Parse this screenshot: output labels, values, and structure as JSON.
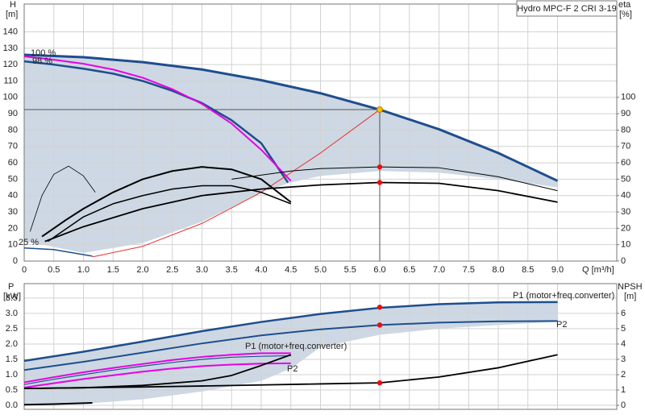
{
  "chart_data": [
    {
      "type": "line",
      "title": "Hydro MPC-F 2 CRI 3-19",
      "y_label": "H",
      "y_unit": "[m]",
      "y2_label": "eta",
      "y2_unit": "[%]",
      "x_label": "Q [m³/h]",
      "xlim": [
        0,
        10
      ],
      "xticks": [
        0,
        0.5,
        {
          "value": 1,
          "label": "1.0"
        },
        1.5,
        {
          "value": 2,
          "label": "2.0"
        },
        2.5,
        {
          "value": 3,
          "label": "3.0"
        },
        3.5,
        {
          "value": 4,
          "label": "4.0"
        },
        4.5,
        {
          "value": 5,
          "label": "5.0"
        },
        5.5,
        {
          "value": 6,
          "label": "6.0"
        },
        6.5,
        {
          "value": 7,
          "label": "7.0"
        },
        7.5,
        {
          "value": 8,
          "label": "8.0"
        },
        8.5,
        {
          "value": 9,
          "label": "9.0"
        }
      ],
      "xtick_labels": true,
      "ylim": [
        0,
        157
      ],
      "yticks": [
        0,
        10,
        20,
        30,
        40,
        50,
        60,
        70,
        80,
        90,
        100,
        110,
        120,
        130,
        140
      ],
      "y2lim": [
        0,
        157
      ],
      "y2ticks": [
        0,
        10,
        20,
        30,
        40,
        50,
        60,
        70,
        80,
        90,
        100
      ],
      "grid": true,
      "area": {
        "color": "#cdd8e4",
        "x": [
          0,
          0.3,
          1,
          2,
          3,
          4,
          4.5,
          5,
          6,
          7,
          8,
          9
        ],
        "upper": [
          126,
          126,
          124.5,
          121.5,
          117,
          110.5,
          107,
          102.5,
          92.5,
          80.5,
          66,
          49
        ],
        "lower": [
          12,
          10,
          5,
          11,
          24,
          42,
          48,
          52,
          55,
          54,
          50,
          45
        ]
      },
      "series": [
        {
          "color": "#1f4e8c",
          "width": 3,
          "x": [
            0,
            1,
            2,
            3,
            4,
            5,
            6,
            7,
            8,
            9
          ],
          "values": [
            126,
            124.5,
            121.5,
            117,
            110.5,
            102.5,
            92.5,
            80.5,
            66,
            49
          ]
        },
        {
          "color": "#1f4e8c",
          "width": 2.5,
          "x": [
            0,
            0.5,
            1,
            1.5,
            2,
            2.5,
            3,
            3.5,
            4,
            4.45
          ],
          "values": [
            122,
            120,
            117.5,
            114.5,
            110,
            104,
            96.5,
            86,
            72,
            48
          ]
        },
        {
          "color": "#e600e6",
          "width": 2,
          "x": [
            0,
            0.5,
            1,
            1.5,
            2,
            2.5,
            3,
            3.5,
            4,
            4.5
          ],
          "values": [
            125,
            123,
            120.5,
            117,
            112,
            105,
            96,
            84,
            68,
            49
          ]
        },
        {
          "color": "#e83030",
          "width": 1,
          "x": [
            1.15,
            2,
            3,
            4,
            5,
            6
          ],
          "values": [
            2.5,
            9,
            23,
            42,
            66,
            92.5
          ]
        },
        {
          "color": "#000000",
          "width": 1,
          "axis": "y2",
          "x": [
            3.5,
            4.5,
            5,
            6,
            7,
            8,
            9
          ],
          "values": [
            50,
            55,
            56.5,
            57.5,
            57,
            51.5,
            43
          ]
        },
        {
          "color": "#000000",
          "width": 1.8,
          "x": [
            0.35,
            1,
            2,
            3,
            4,
            5,
            6,
            7,
            8,
            9
          ],
          "values": [
            12,
            21,
            32,
            40,
            44,
            46.5,
            48,
            47.5,
            43,
            36
          ]
        },
        {
          "color": "#000000",
          "width": 2,
          "axis": "y2",
          "x": [
            0.3,
            0.7,
            1,
            1.5,
            2,
            2.5,
            3,
            3.5,
            4,
            4.5
          ],
          "values": [
            15,
            25,
            32,
            42,
            50,
            55,
            57.5,
            56,
            50,
            36
          ]
        },
        {
          "color": "#000000",
          "width": 1.5,
          "x": [
            0.4,
            1,
            1.5,
            2,
            2.5,
            3,
            3.5,
            4,
            4.5
          ],
          "values": [
            12,
            27,
            35,
            40,
            44,
            46,
            46,
            42,
            35
          ]
        },
        {
          "color": "#000000",
          "width": 0.8,
          "x": [
            0.1,
            0.3,
            0.5,
            0.75,
            1,
            1.2
          ],
          "values": [
            18,
            40,
            53,
            58,
            52,
            42
          ]
        },
        {
          "color": "#1f4e8c",
          "width": 1.5,
          "x": [
            0,
            0.5,
            1.15
          ],
          "values": [
            8,
            7,
            3
          ]
        }
      ],
      "duty_point": {
        "x": 6,
        "y": 92.5,
        "color": "#f5c000"
      },
      "points": [
        {
          "x": 6,
          "y": 57.5,
          "axis": "y2",
          "color": "#e81010"
        },
        {
          "x": 6,
          "y": 48,
          "color": "#e81010"
        }
      ],
      "annotations": [
        "100 %",
        "98 %",
        "25 %"
      ]
    },
    {
      "type": "line",
      "y_label": "P",
      "y_unit": "[kW]",
      "y2_label": "NPSH",
      "y2_unit": "[m]",
      "xlim": [
        0,
        10
      ],
      "xticks": [
        0,
        0.5,
        1,
        1.5,
        2,
        2.5,
        3,
        3.5,
        4,
        4.5,
        5,
        5.5,
        6,
        6.5,
        7,
        7.5,
        8,
        8.5,
        9
      ],
      "xtick_labels": false,
      "ylim": [
        -0.13,
        3.97
      ],
      "yticks": [
        {
          "value": 0,
          "label": "0.0"
        },
        0.5,
        {
          "value": 1,
          "label": "1.0"
        },
        1.5,
        {
          "value": 2,
          "label": "2.0"
        },
        2.5,
        {
          "value": 3,
          "label": "3.0"
        },
        3.5
      ],
      "y2lim": [
        -0.26,
        7.94
      ],
      "y2ticks": [
        0,
        1,
        2,
        3,
        4,
        5,
        6
      ],
      "grid": true,
      "area": {
        "color": "#cdd8e4",
        "x": [
          0,
          1,
          2,
          3,
          4,
          4.5,
          5,
          6,
          7,
          8,
          9
        ],
        "upper": [
          1.45,
          1.75,
          2.08,
          2.42,
          2.72,
          2.85,
          2.98,
          3.18,
          3.3,
          3.36,
          3.37
        ],
        "lower": [
          0,
          0.05,
          0.2,
          0.45,
          0.8,
          1.2,
          1.9,
          2.3,
          2.5,
          2.62,
          2.72
        ]
      },
      "series": [
        {
          "color": "#1f4e8c",
          "width": 2.5,
          "x": [
            0,
            1,
            2,
            3,
            4,
            5,
            6,
            7,
            8,
            9
          ],
          "values": [
            1.45,
            1.75,
            2.08,
            2.42,
            2.72,
            2.98,
            3.18,
            3.3,
            3.36,
            3.37
          ]
        },
        {
          "color": "#1f4e8c",
          "width": 2,
          "x": [
            0,
            1,
            2,
            3,
            4,
            5,
            6,
            7,
            8,
            9
          ],
          "values": [
            1.15,
            1.42,
            1.72,
            2.02,
            2.28,
            2.48,
            2.62,
            2.7,
            2.74,
            2.75
          ]
        },
        {
          "color": "#e600e6",
          "width": 2,
          "x": [
            0,
            0.5,
            1,
            1.5,
            2,
            2.5,
            3,
            3.5,
            4,
            4.5
          ],
          "values": [
            0.75,
            0.92,
            1.08,
            1.22,
            1.35,
            1.48,
            1.58,
            1.65,
            1.7,
            1.7
          ]
        },
        {
          "color": "#e600e6",
          "width": 2,
          "x": [
            0,
            0.5,
            1,
            1.5,
            2,
            2.5,
            3,
            3.5,
            4,
            4.5
          ],
          "values": [
            0.58,
            0.72,
            0.86,
            0.98,
            1.1,
            1.2,
            1.28,
            1.33,
            1.36,
            1.37
          ]
        },
        {
          "color": "#1f4e8c",
          "width": 1.2,
          "x": [
            0,
            0.5,
            1,
            1.5,
            2,
            2.5,
            3,
            3.5,
            4,
            4.5
          ],
          "values": [
            0.68,
            0.85,
            1,
            1.15,
            1.28,
            1.4,
            1.5,
            1.57,
            1.6,
            1.62
          ]
        },
        {
          "color": "#000000",
          "width": 1.8,
          "axis": "y2",
          "x": [
            0,
            1,
            2,
            3,
            4,
            5,
            6,
            7,
            8,
            9
          ],
          "values": [
            1.1,
            1.15,
            1.2,
            1.26,
            1.33,
            1.4,
            1.47,
            1.85,
            2.45,
            3.3
          ]
        },
        {
          "color": "#000000",
          "width": 1.8,
          "axis": "y2",
          "x": [
            0,
            1,
            2,
            3,
            3.5,
            4,
            4.5
          ],
          "values": [
            1.1,
            1.15,
            1.3,
            1.6,
            1.95,
            2.6,
            3.3
          ]
        },
        {
          "color": "#000000",
          "width": 2,
          "x": [
            0,
            0.5,
            1.15
          ],
          "values": [
            0.02,
            0.04,
            0.08
          ]
        }
      ],
      "points": [
        {
          "x": 6,
          "y": 3.2,
          "color": "#e81010"
        },
        {
          "x": 6,
          "y": 2.62,
          "color": "#e81010"
        },
        {
          "x": 6,
          "y": 1.47,
          "axis": "y2",
          "color": "#e81010"
        }
      ],
      "annotations": [
        "P1 (motor+freq.converter)",
        "P2",
        "P1 (motor+freq.converter)",
        "P2"
      ]
    }
  ]
}
